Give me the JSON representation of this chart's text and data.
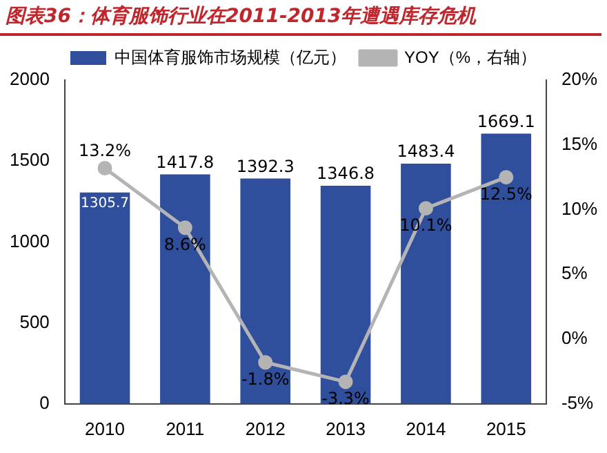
{
  "chart_data": {
    "type": "bar",
    "title": "图表36：体育服饰行业在2011-2013年遭遇库存危机",
    "categories": [
      "2010",
      "2011",
      "2012",
      "2013",
      "2014",
      "2015"
    ],
    "series": [
      {
        "name": "中国体育服饰市场规模（亿元）",
        "color": "#2f4f9c",
        "values": [
          1305.7,
          1417.8,
          1392.3,
          1346.8,
          1483.4,
          1669.1
        ],
        "value_labels": [
          "1305.7",
          "1417.8",
          "1392.3",
          "1346.8",
          "1483.4",
          "1669.1"
        ]
      },
      {
        "name": "YOY（%，右轴）",
        "type": "line",
        "axis": "y2",
        "color": "#b4b4b4",
        "values": [
          13.2,
          8.6,
          -1.8,
          -3.3,
          10.1,
          12.5
        ],
        "value_labels": [
          "13.2%",
          "8.6%",
          "-1.8%",
          "-3.3%",
          "10.1%",
          "12.5%"
        ]
      }
    ],
    "ylim": [
      0,
      2000
    ],
    "yticks": [
      0,
      500,
      1000,
      1500,
      2000
    ],
    "y2lim": [
      -5,
      20
    ],
    "y2ticks": [
      {
        "value": -5,
        "label": "-5%"
      },
      {
        "value": 0,
        "label": "0%"
      },
      {
        "value": 5,
        "label": "5%"
      },
      {
        "value": 10,
        "label": "10%"
      },
      {
        "value": 15,
        "label": "15%"
      },
      {
        "value": 20,
        "label": "20%"
      }
    ],
    "grid": false,
    "legend": "top",
    "marker": "circle",
    "line_style": "solid"
  }
}
